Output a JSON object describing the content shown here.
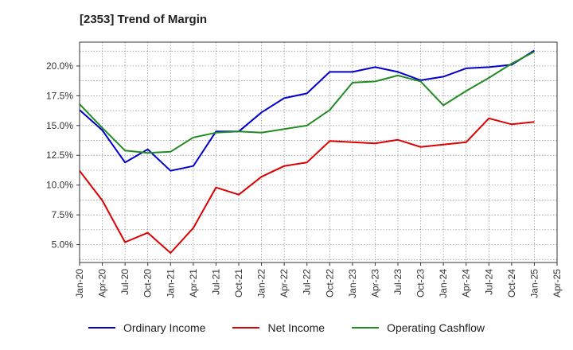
{
  "title": "[2353]  Trend of Margin",
  "chart_data": {
    "type": "line",
    "title": "[2353]  Trend of Margin",
    "x": [
      "Jan-20",
      "Apr-20",
      "Jul-20",
      "Oct-20",
      "Jan-21",
      "Apr-21",
      "Jul-21",
      "Oct-21",
      "Jan-22",
      "Apr-22",
      "Jul-22",
      "Oct-22",
      "Jan-23",
      "Apr-23",
      "Jul-23",
      "Oct-23",
      "Jan-24",
      "Apr-24",
      "Jul-24",
      "Oct-24",
      "Jan-25"
    ],
    "x_tick_labels": [
      "Jan-20",
      "Apr-20",
      "Jul-20",
      "Oct-20",
      "Jan-21",
      "Apr-21",
      "Jul-21",
      "Oct-21",
      "Jan-22",
      "Apr-22",
      "Jul-22",
      "Oct-22",
      "Jan-23",
      "Apr-23",
      "Jul-23",
      "Oct-23",
      "Jan-24",
      "Apr-24",
      "Jul-24",
      "Oct-24",
      "Jan-25",
      "Apr-25"
    ],
    "y_tick_labels": [
      "5.0%",
      "7.5%",
      "10.0%",
      "12.5%",
      "15.0%",
      "17.5%",
      "20.0%"
    ],
    "y_ticks": [
      5.0,
      7.5,
      10.0,
      12.5,
      15.0,
      17.5,
      20.0
    ],
    "ylim": [
      3.5,
      22.0
    ],
    "grid": true,
    "legend_position": "bottom",
    "series": [
      {
        "name": "Ordinary Income",
        "color": "#0000cc",
        "values": [
          16.3,
          14.6,
          11.9,
          13.0,
          11.2,
          11.6,
          14.5,
          14.5,
          16.1,
          17.3,
          17.7,
          19.5,
          19.5,
          19.9,
          19.5,
          18.8,
          19.1,
          19.8,
          19.9,
          20.1,
          21.3
        ]
      },
      {
        "name": "Net Income",
        "color": "#dd0000",
        "values": [
          11.2,
          8.7,
          5.2,
          6.0,
          4.3,
          6.4,
          9.8,
          9.2,
          10.7,
          11.6,
          11.9,
          13.7,
          13.6,
          13.5,
          13.8,
          13.2,
          13.4,
          13.6,
          15.6,
          15.1,
          15.3
        ]
      },
      {
        "name": "Operating Cashflow",
        "color": "#228b22",
        "values": [
          16.8,
          14.8,
          12.9,
          12.7,
          12.8,
          14.0,
          14.4,
          14.5,
          14.4,
          14.7,
          15.0,
          16.3,
          18.6,
          18.7,
          19.2,
          18.7,
          16.7,
          17.9,
          19.0,
          20.2,
          21.2
        ]
      }
    ]
  }
}
